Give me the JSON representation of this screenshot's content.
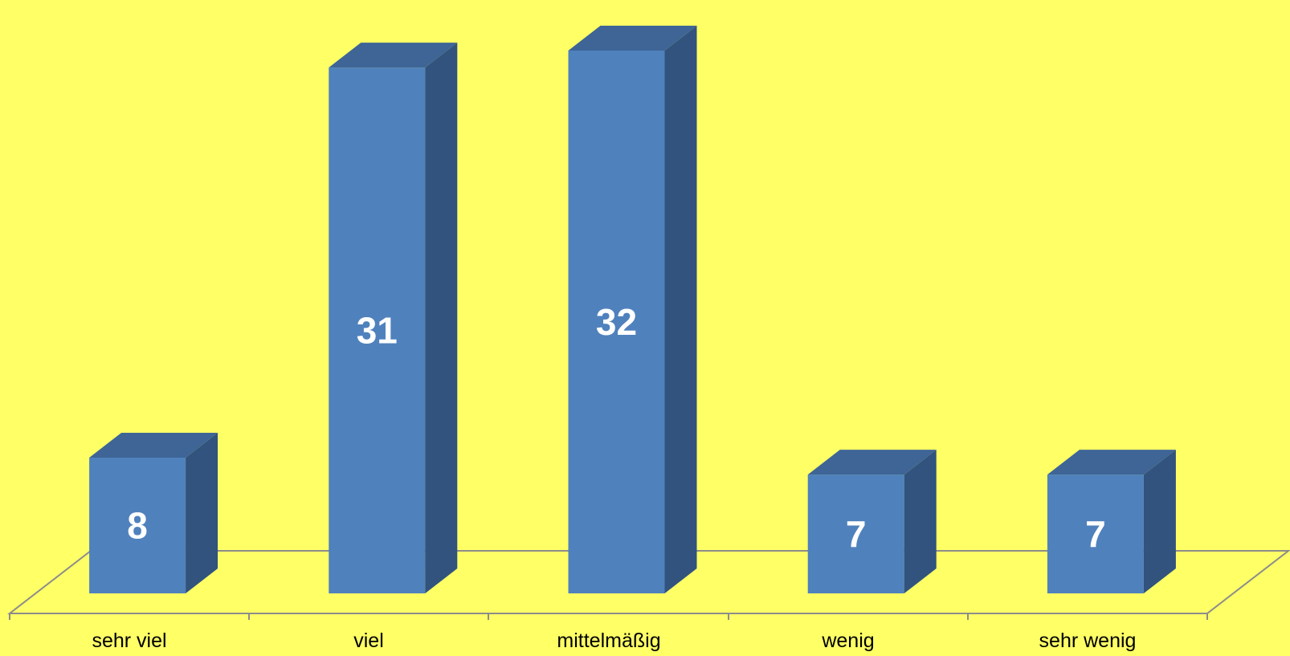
{
  "chart_data": {
    "type": "bar",
    "categories": [
      "sehr viel",
      "viel",
      "mittelmäßig",
      "wenig",
      "sehr wenig"
    ],
    "values": [
      8,
      31,
      32,
      7,
      7
    ],
    "data_labels": [
      "8",
      "31",
      "32",
      "7",
      "7"
    ],
    "title": "",
    "xlabel": "",
    "ylabel": "",
    "ylim": [
      0,
      32
    ],
    "grid": false,
    "legend": "none",
    "style": "3d-column"
  },
  "colors": {
    "background": "#FFFF66",
    "bar_front": "#4F81BD",
    "bar_side": "#31537D",
    "bar_top": "#3E6596",
    "floor_line": "#8C8C8C",
    "data_label": "#FFFFFF",
    "category_label": "#000000"
  }
}
